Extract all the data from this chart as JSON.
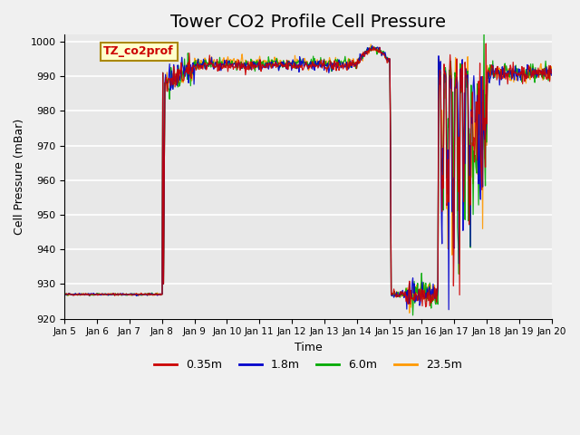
{
  "title": "Tower CO2 Profile Cell Pressure",
  "xlabel": "Time",
  "ylabel": "Cell Pressure (mBar)",
  "ylim": [
    920,
    1002
  ],
  "yticks": [
    920,
    930,
    940,
    950,
    960,
    970,
    980,
    990,
    1000
  ],
  "xtick_labels": [
    "Jan 5",
    "Jan 6",
    "Jan 7",
    "Jan 8",
    "Jan 9",
    "Jan 10",
    "Jan 11",
    "Jan 12",
    "Jan 13",
    "Jan 14",
    "Jan 15",
    "Jan 16",
    "Jan 17",
    "Jan 18",
    "Jan 19",
    "Jan 20"
  ],
  "series_labels": [
    "0.35m",
    "1.8m",
    "6.0m",
    "23.5m"
  ],
  "series_colors": [
    "#cc0000",
    "#0000cc",
    "#00aa00",
    "#ff9900"
  ],
  "legend_label_box_color": "#ffffcc",
  "legend_label_box_edge": "#aa8800",
  "legend_label_text": "TZ_co2prof",
  "background_color": "#e8e8e8",
  "grid_color": "#ffffff",
  "title_fontsize": 14,
  "total_days": 15,
  "n_pts_per_day": 48
}
